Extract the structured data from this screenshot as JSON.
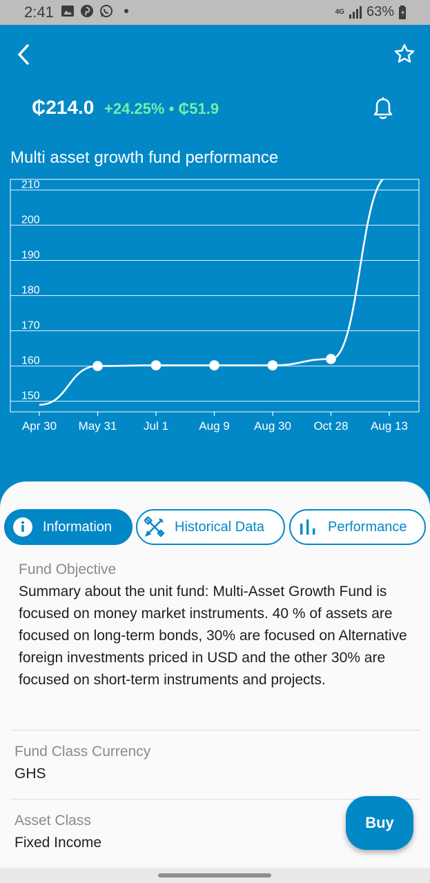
{
  "status_bar": {
    "time": "2:41",
    "network": "4G",
    "battery": "63%",
    "icons": [
      "gallery-icon",
      "pinterest-icon",
      "whatsapp-icon",
      "notification-dot",
      "network-icon",
      "signal-icon",
      "battery-icon"
    ]
  },
  "header": {
    "price": "₵214.0",
    "change": "+24.25% • ₵51.9",
    "chart_title": "Multi asset growth fund performance",
    "icons": [
      "back-arrow-icon",
      "star-icon",
      "bell-icon"
    ]
  },
  "chart_data": {
    "type": "line",
    "x": [
      "Apr 30",
      "May 31",
      "Jul 1",
      "Aug 9",
      "Aug 30",
      "Oct 28",
      "Aug 13"
    ],
    "y_ticks": [
      150,
      160,
      170,
      180,
      190,
      200,
      210
    ],
    "series": [
      {
        "values": [
          149,
          160,
          160.2,
          160.2,
          160.2,
          162,
          214
        ]
      }
    ],
    "ylim": [
      147,
      213
    ],
    "grid": true,
    "colors": {
      "line": "#ffffff",
      "grid": "#ffffff",
      "background": "#0288c7"
    }
  },
  "tabs": [
    {
      "label": "Information",
      "icon": "info-icon",
      "active": true
    },
    {
      "label": "Historical Data",
      "icon": "tools-icon",
      "active": false
    },
    {
      "label": "Performance",
      "icon": "bar-chart-icon",
      "active": false
    }
  ],
  "details": {
    "objective_label": "Fund Objective",
    "objective_text": "Summary about the unit fund: Multi-Asset Growth Fund is focused on money market instruments. 40 % of assets are focused on long-term bonds, 30% are focused on Alternative foreign investments priced in USD and the other 30% are focused on short-term instruments and projects.",
    "currency_label": "Fund Class Currency",
    "currency_value": "GHS",
    "asset_label": "Asset Class",
    "asset_value": "Fixed Income"
  },
  "buy_label": "Buy",
  "colors": {
    "primary": "#0288c7",
    "accent_green": "#6ff0a8",
    "sheet": "#fafafa"
  }
}
